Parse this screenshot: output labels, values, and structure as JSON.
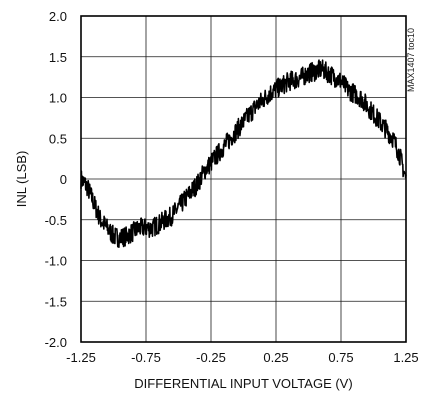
{
  "chart_data": {
    "type": "line",
    "title": "",
    "xlabel": "DIFFERENTIAL INPUT VOLTAGE (V)",
    "ylabel": "INL (LSB)",
    "xlim": [
      -1.25,
      1.25
    ],
    "ylim": [
      -2.0,
      2.0
    ],
    "grid": true,
    "x_ticks": [
      -1.25,
      -0.75,
      -0.25,
      0.25,
      0.75,
      1.25
    ],
    "x_tick_labels": [
      "-1.25",
      "-0.75",
      "-0.25",
      "0.25",
      "0.75",
      "1.25"
    ],
    "y_ticks": [
      2.0,
      1.5,
      1.0,
      0.5,
      0,
      -0.5,
      -1.0,
      -1.5,
      -2.0
    ],
    "y_tick_labels": [
      "2.0",
      "1.5",
      "1.0",
      "0.5",
      "0",
      "-0.5",
      "-1.0",
      "-1.5",
      "-2.0"
    ],
    "annotation": "MAX1407 toc10",
    "series": [
      {
        "x": [
          -1.25,
          -1.2,
          -1.15,
          -1.1,
          -1.05,
          -1.0,
          -0.95,
          -0.9,
          -0.85,
          -0.8,
          -0.75,
          -0.7,
          -0.65,
          -0.6,
          -0.55,
          -0.5,
          -0.45,
          -0.4,
          -0.35,
          -0.3,
          -0.25,
          -0.2,
          -0.15,
          -0.1,
          -0.05,
          0.0,
          0.05,
          0.1,
          0.15,
          0.2,
          0.25,
          0.3,
          0.35,
          0.4,
          0.45,
          0.5,
          0.55,
          0.6,
          0.65,
          0.7,
          0.75,
          0.8,
          0.85,
          0.9,
          0.95,
          1.0,
          1.05,
          1.1,
          1.15,
          1.2,
          1.25
        ],
        "y": [
          0.0,
          -0.1,
          -0.3,
          -0.5,
          -0.6,
          -0.7,
          -0.72,
          -0.7,
          -0.65,
          -0.6,
          -0.6,
          -0.6,
          -0.55,
          -0.5,
          -0.45,
          -0.35,
          -0.25,
          -0.15,
          -0.05,
          0.1,
          0.2,
          0.3,
          0.4,
          0.5,
          0.6,
          0.7,
          0.8,
          0.9,
          0.97,
          1.05,
          1.1,
          1.15,
          1.2,
          1.22,
          1.25,
          1.3,
          1.32,
          1.35,
          1.3,
          1.25,
          1.2,
          1.1,
          1.05,
          1.0,
          0.9,
          0.8,
          0.7,
          0.6,
          0.5,
          0.3,
          0.0
        ],
        "noise_amplitude": 0.12
      }
    ]
  }
}
